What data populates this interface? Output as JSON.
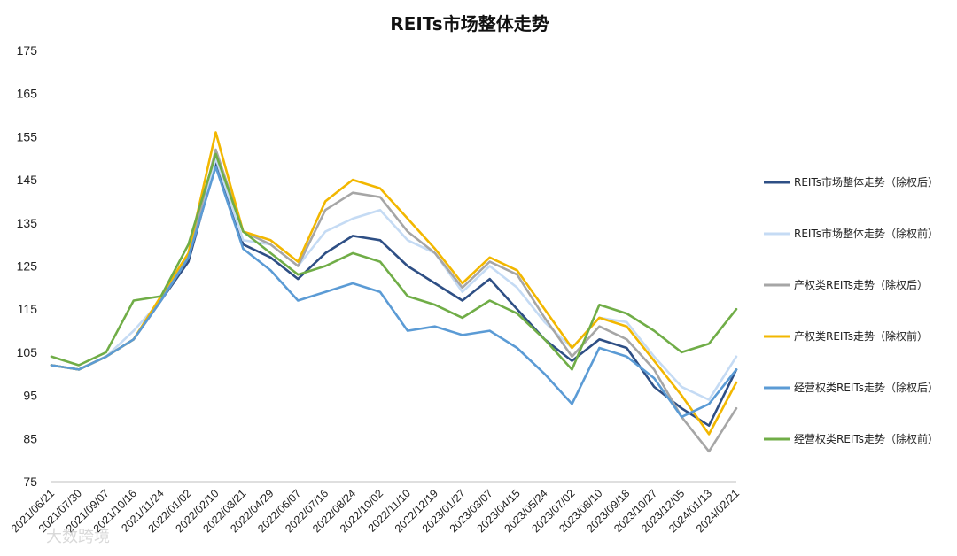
{
  "chart_data": {
    "type": "line",
    "title": "REITs市场整体走势",
    "ylim": [
      75,
      175
    ],
    "yticks": [
      75,
      85,
      95,
      105,
      115,
      125,
      135,
      145,
      155,
      165,
      175
    ],
    "x_tick_labels": [
      "2021/06/21",
      "2021/07/30",
      "2021/09/07",
      "2021/10/16",
      "2021/11/24",
      "2022/01/02",
      "2022/02/10",
      "2022/03/21",
      "2022/04/29",
      "2022/06/07",
      "2022/07/16",
      "2022/08/24",
      "2022/10/02",
      "2022/11/10",
      "2022/12/19",
      "2023/01/27",
      "2023/03/07",
      "2023/04/15",
      "2023/05/24",
      "2023/07/02",
      "2023/08/10",
      "2023/09/18",
      "2023/10/27",
      "2023/12/05",
      "2024/01/13",
      "2024/02/21"
    ],
    "x": [
      "2021/06/21",
      "2021/07/30",
      "2021/09/07",
      "2021/10/16",
      "2021/11/24",
      "2022/01/02",
      "2022/02/10",
      "2022/03/21",
      "2022/04/29",
      "2022/06/07",
      "2022/07/16",
      "2022/08/24",
      "2022/10/02",
      "2022/11/10",
      "2022/12/19",
      "2023/01/27",
      "2023/03/07",
      "2023/04/15",
      "2023/05/24",
      "2023/07/02",
      "2023/08/10",
      "2023/09/18",
      "2023/10/27",
      "2023/12/05",
      "2024/01/13",
      "2024/02/21"
    ],
    "grid": false,
    "legend_position": "right",
    "series": [
      {
        "name": "REITs市场整体走势（除权后）",
        "color": "#2e4f85",
        "values": [
          102,
          101,
          104,
          108,
          117,
          126,
          149,
          130,
          127,
          122,
          128,
          132,
          131,
          125,
          121,
          117,
          122,
          115,
          108,
          103,
          108,
          106,
          97,
          92,
          88,
          101
        ]
      },
      {
        "name": "REITs市场整体走势（除权前）",
        "color": "#c5dbf4",
        "values": [
          102,
          101,
          104,
          110,
          117,
          127,
          150,
          131,
          130,
          125,
          133,
          136,
          138,
          131,
          128,
          119,
          125,
          120,
          112,
          106,
          113,
          112,
          104,
          97,
          94,
          104
        ]
      },
      {
        "name": "产权类REITs走势（除权后）",
        "color": "#a6a6a6",
        "values": [
          102,
          101,
          104,
          108,
          117,
          127,
          152,
          133,
          130,
          125,
          138,
          142,
          141,
          133,
          128,
          120,
          126,
          123,
          113,
          104,
          111,
          108,
          101,
          90,
          82,
          92
        ]
      },
      {
        "name": "产权类REITs走势（除权前）",
        "color": "#f2b700",
        "values": [
          102,
          101,
          104,
          108,
          118,
          128,
          156,
          133,
          131,
          126,
          140,
          145,
          143,
          136,
          129,
          121,
          127,
          124,
          115,
          106,
          113,
          111,
          103,
          95,
          86,
          98
        ]
      },
      {
        "name": "经营权类REITs走势（除权后）",
        "color": "#5b9bd5",
        "values": [
          102,
          101,
          104,
          108,
          117,
          127,
          148,
          129,
          124,
          117,
          119,
          121,
          119,
          110,
          111,
          109,
          110,
          106,
          100,
          93,
          106,
          104,
          99,
          90,
          93,
          101
        ]
      },
      {
        "name": "经营权类REITs走势（除权前）",
        "color": "#70ad47",
        "values": [
          104,
          102,
          105,
          117,
          118,
          130,
          151,
          133,
          128,
          123,
          125,
          128,
          126,
          118,
          116,
          113,
          117,
          114,
          108,
          101,
          116,
          114,
          110,
          105,
          107,
          115
        ]
      }
    ]
  },
  "watermark": "大数跨境"
}
